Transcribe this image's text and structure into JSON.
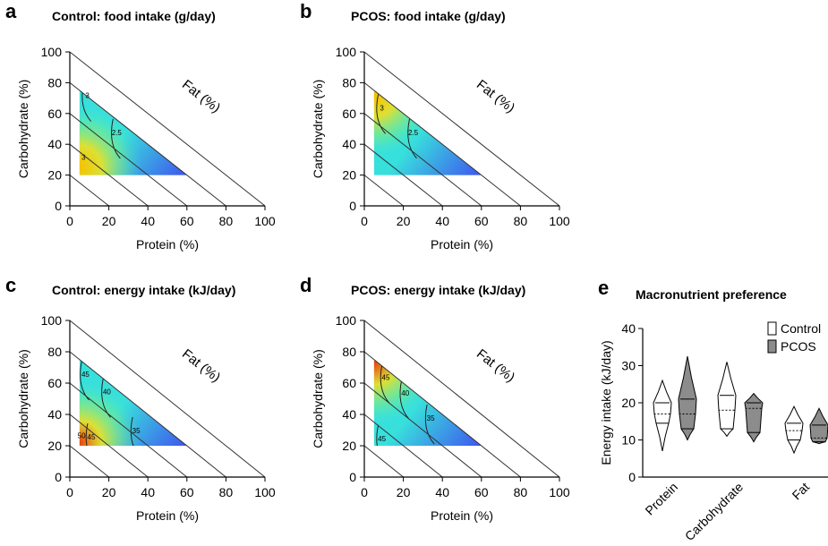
{
  "chart_data": [
    {
      "type": "heatmap",
      "panel": "a",
      "title": "Control: food intake (g/day)",
      "xlabel": "Protein (%)",
      "ylabel": "Carbohydrate (%)",
      "diag_label": "Fat (%)",
      "xticks": [
        "0",
        "20",
        "40",
        "60",
        "80",
        "100"
      ],
      "yticks": [
        "0",
        "20",
        "40",
        "60",
        "80",
        "100"
      ],
      "xlim": [
        0,
        100
      ],
      "ylim": [
        0,
        100
      ],
      "data_region": {
        "protein": [
          5,
          60
        ],
        "carbohydrate": [
          20,
          75
        ]
      },
      "colors": {
        "high": "#f5c000",
        "mid": "#38e0dc",
        "low": "#3f55f0"
      },
      "hot": {
        "protein": 5,
        "carbohydrate": 25
      },
      "cold": {
        "protein": 55,
        "carbohydrate": 20
      },
      "contours": [
        {
          "value": "3",
          "label_at": {
            "protein": 9,
            "carbohydrate": 70
          },
          "label_at2": {
            "protein": 6,
            "carbohydrate": 30
          }
        },
        {
          "value": "2.5",
          "label_at": {
            "protein": 24,
            "carbohydrate": 46
          }
        }
      ]
    },
    {
      "type": "heatmap",
      "panel": "b",
      "title": "PCOS: food intake (g/day)",
      "xlabel": "Protein (%)",
      "ylabel": "Carbohydrate (%)",
      "diag_label": "Fat (%)",
      "xticks": [
        "0",
        "20",
        "40",
        "60",
        "80",
        "100"
      ],
      "yticks": [
        "0",
        "20",
        "40",
        "60",
        "80",
        "100"
      ],
      "xlim": [
        0,
        100
      ],
      "ylim": [
        0,
        100
      ],
      "data_region": {
        "protein": [
          5,
          60
        ],
        "carbohydrate": [
          20,
          75
        ]
      },
      "colors": {
        "high": "#f5c000",
        "mid": "#38e0dc",
        "low": "#3f55f0"
      },
      "hot": {
        "protein": 5,
        "carbohydrate": 72
      },
      "cold": {
        "protein": 55,
        "carbohydrate": 20
      },
      "contours": [
        {
          "value": "3",
          "label_at": {
            "protein": 9,
            "carbohydrate": 62
          }
        },
        {
          "value": "2.5",
          "label_at": {
            "protein": 25,
            "carbohydrate": 46
          }
        }
      ]
    },
    {
      "type": "heatmap",
      "panel": "c",
      "title": "Control: energy intake (kJ/day)",
      "xlabel": "Protein (%)",
      "ylabel": "Carbohydrate (%)",
      "diag_label": "Fat (%)",
      "xticks": [
        "0",
        "20",
        "40",
        "60",
        "80",
        "100"
      ],
      "yticks": [
        "0",
        "20",
        "40",
        "60",
        "80",
        "100"
      ],
      "xlim": [
        0,
        100
      ],
      "ylim": [
        0,
        100
      ],
      "data_region": {
        "protein": [
          5,
          60
        ],
        "carbohydrate": [
          20,
          75
        ]
      },
      "colors": {
        "high": "#e84010",
        "mid": "#38e0dc",
        "low": "#3f55f0"
      },
      "hot": {
        "protein": 5,
        "carbohydrate": 22
      },
      "cold": {
        "protein": 55,
        "carbohydrate": 20
      },
      "contours": [
        {
          "value": "45",
          "label_at": {
            "protein": 8,
            "carbohydrate": 64
          }
        },
        {
          "value": "40",
          "label_at": {
            "protein": 19,
            "carbohydrate": 53
          }
        },
        {
          "value": "35",
          "label_at": {
            "protein": 34,
            "carbohydrate": 28
          }
        },
        {
          "value": "50",
          "label_at": {
            "protein": 6,
            "carbohydrate": 25
          }
        },
        {
          "value": "45",
          "label_at": {
            "protein": 11,
            "carbohydrate": 24
          }
        }
      ]
    },
    {
      "type": "heatmap",
      "panel": "d",
      "title": "PCOS: energy intake (kJ/day)",
      "xlabel": "Protein (%)",
      "ylabel": "Carbohydrate (%)",
      "diag_label": "Fat (%)",
      "xticks": [
        "0",
        "20",
        "40",
        "60",
        "80",
        "100"
      ],
      "yticks": [
        "0",
        "20",
        "40",
        "60",
        "80",
        "100"
      ],
      "xlim": [
        0,
        100
      ],
      "ylim": [
        0,
        100
      ],
      "data_region": {
        "protein": [
          5,
          60
        ],
        "carbohydrate": [
          20,
          75
        ]
      },
      "colors": {
        "high": "#e84010",
        "mid": "#38e0dc",
        "low": "#3f55f0"
      },
      "hot": {
        "protein": 5,
        "carbohydrate": 73
      },
      "cold": {
        "protein": 55,
        "carbohydrate": 20
      },
      "contours": [
        {
          "value": "45",
          "label_at": {
            "protein": 11,
            "carbohydrate": 62
          }
        },
        {
          "value": "40",
          "label_at": {
            "protein": 21,
            "carbohydrate": 52
          }
        },
        {
          "value": "35",
          "label_at": {
            "protein": 34,
            "carbohydrate": 36
          }
        },
        {
          "value": "45",
          "label_at": {
            "protein": 9,
            "carbohydrate": 23
          }
        }
      ]
    },
    {
      "type": "violin",
      "panel": "e",
      "title": "Macronutrient preference",
      "ylabel": "Energy intake (kJ/day)",
      "ylim": [
        0,
        40
      ],
      "yticks": [
        "0",
        "10",
        "20",
        "30",
        "40"
      ],
      "categories": [
        "Protein",
        "Carbohydrate",
        "Fat"
      ],
      "legend_position": "top-right",
      "series": [
        {
          "name": "Control",
          "color": "#ffffff",
          "groups": [
            {
              "min": 7,
              "max": 26,
              "median": 17,
              "q1": 14.5,
              "q3": 20
            },
            {
              "min": 11,
              "max": 31,
              "median": 18,
              "q1": 13,
              "q3": 22
            },
            {
              "min": 6.5,
              "max": 19,
              "median": 12.5,
              "q1": 10,
              "q3": 14.5
            }
          ]
        },
        {
          "name": "PCOS",
          "color": "#8c8c8c",
          "groups": [
            {
              "min": 10,
              "max": 32.5,
              "median": 17,
              "q1": 13,
              "q3": 21
            },
            {
              "min": 9.5,
              "max": 22.5,
              "median": 18.5,
              "q1": 12,
              "q3": 20
            },
            {
              "min": 9,
              "max": 18.5,
              "median": 10.5,
              "q1": 9.5,
              "q3": 14
            }
          ]
        }
      ]
    }
  ]
}
